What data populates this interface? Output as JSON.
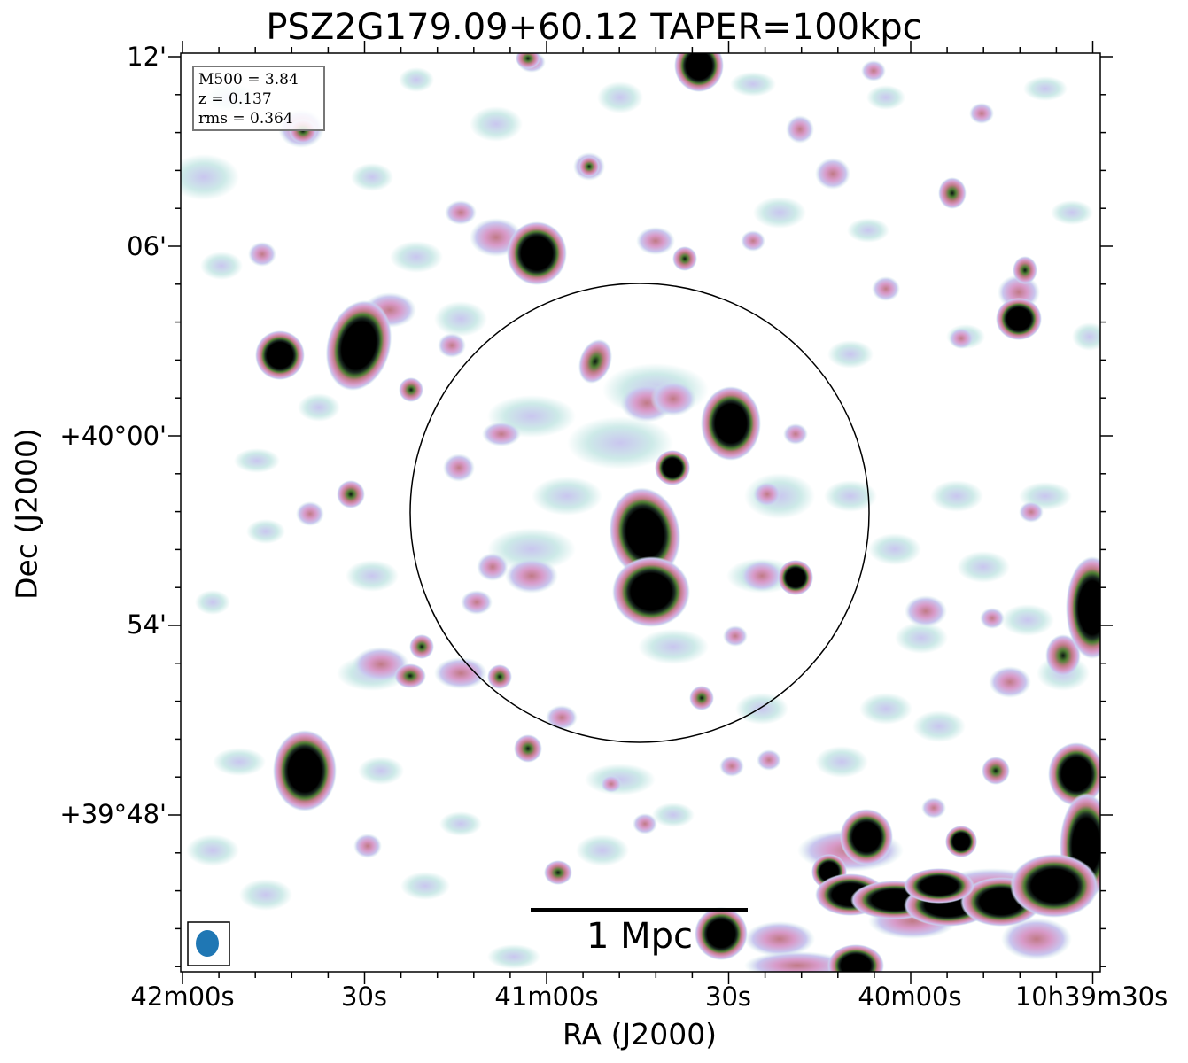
{
  "title": "PSZ2G179.09+60.12 TAPER=100kpc",
  "axes": {
    "xlabel": "RA (J2000)",
    "ylabel": "Dec (J2000)",
    "xticks": [
      "42m00s",
      "30s",
      "41m00s",
      "30s",
      "40m00s",
      "10h39m30s"
    ],
    "yticks": [
      "12'",
      "06'",
      "+40°00'",
      "54'",
      "+39°48'"
    ]
  },
  "info": {
    "m500": "M500 = 3.84",
    "z": "z = 0.137",
    "rms": "rms = 0.364"
  },
  "scalebar": {
    "label": "1 Mpc"
  },
  "colors": {
    "faint": "#cdeae8",
    "lavender": "#c9c6ef",
    "pink": "#d89ac8",
    "rose": "#c07a86",
    "green": "#4f7f33",
    "black": "#000000",
    "beam": "#1f77b4"
  }
}
